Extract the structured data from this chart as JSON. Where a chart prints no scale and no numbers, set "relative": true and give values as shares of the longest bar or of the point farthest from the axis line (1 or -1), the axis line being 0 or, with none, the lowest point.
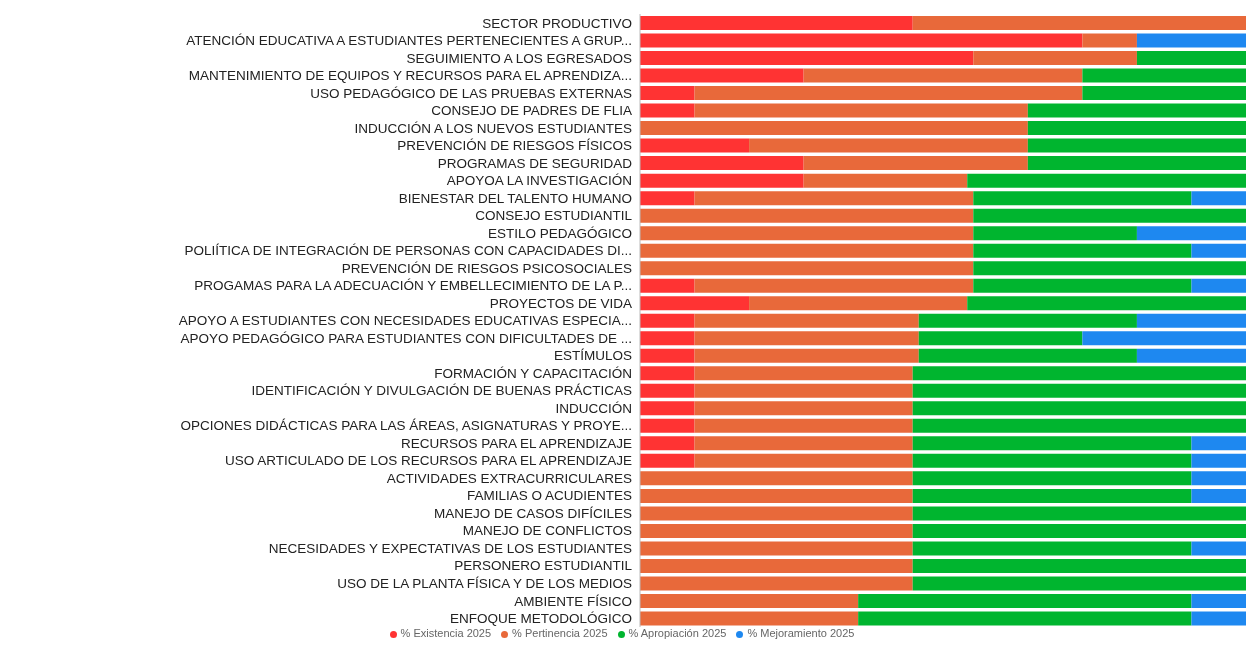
{
  "chart_data": {
    "type": "bar",
    "orientation": "horizontal",
    "stacked": true,
    "relative": true,
    "legend": "bottom",
    "grid": false,
    "marker": "circle",
    "categories": [
      "SECTOR PRODUCTIVO",
      "ATENCIÓN EDUCATIVA A ESTUDIANTES PERTENECIENTES A GRUP...",
      "SEGUIMIENTO A LOS EGRESADOS",
      "MANTENIMIENTO DE EQUIPOS Y RECURSOS PARA EL APRENDIZA...",
      "USO PEDAGÓGICO DE LAS PRUEBAS EXTERNAS",
      "CONSEJO DE PADRES DE FLIA",
      "INDUCCIÓN A LOS NUEVOS ESTUDIANTES",
      "PREVENCIÓN DE RIESGOS FÍSICOS",
      "PROGRAMAS DE SEGURIDAD",
      "APOYOA LA INVESTIGACIÓN",
      "BIENESTAR DEL TALENTO HUMANO",
      "CONSEJO ESTUDIANTIL",
      "ESTILO PEDAGÓGICO",
      "POLIÍTICA DE INTEGRACIÓN DE PERSONAS CON CAPACIDADES DI...",
      "PREVENCIÓN DE RIESGOS PSICOSOCIALES",
      "PROGAMAS PARA LA ADECUACIÓN Y EMBELLECIMIENTO DE LA P...",
      "PROYECTOS DE VIDA",
      "APOYO A ESTUDIANTES CON NECESIDADES EDUCATIVAS ESPECIA...",
      "APOYO PEDAGÓGICO PARA ESTUDIANTES CON DIFICULTADES DE ...",
      "ESTÍMULOS",
      "FORMACIÓN Y CAPACITACIÓN",
      "IDENTIFICACIÓN Y DIVULGACIÓN DE BUENAS PRÁCTICAS",
      "INDUCCIÓN",
      "OPCIONES DIDÁCTICAS PARA LAS ÁREAS, ASIGNATURAS Y PROYE...",
      "RECURSOS PARA EL APRENDIZAJE",
      "USO ARTICULADO DE LOS RECURSOS PARA EL APRENDIZAJE",
      "ACTIVIDADES EXTRACURRICULARES",
      "FAMILIAS O ACUDIENTES",
      "MANEJO DE CASOS DIFÍCILES",
      "MANEJO DE CONFLICTOS",
      "NECESIDADES Y EXPECTATIVAS DE LOS ESTUDIANTES",
      "PERSONERO ESTUDIANTIL",
      "USO DE LA PLANTA FÍSICA Y DE LOS MEDIOS",
      "AMBIENTE FÍSICO",
      "ENFOQUE METODOLÓGICO"
    ],
    "series": [
      {
        "name": "% Existencia 2025",
        "color": "#ff3333",
        "values": [
          0.45,
          0.73,
          0.55,
          0.27,
          0.09,
          0.09,
          null,
          0.18,
          0.27,
          0.27,
          0.09,
          null,
          null,
          null,
          null,
          0.09,
          0.18,
          0.09,
          0.09,
          0.09,
          0.09,
          0.09,
          0.09,
          0.09,
          0.09,
          0.09,
          null,
          null,
          null,
          null,
          null,
          null,
          null,
          null,
          null
        ]
      },
      {
        "name": "% Pertinencia 2025",
        "color": "#e8693a",
        "values": [
          0.55,
          0.09,
          0.27,
          0.46,
          0.64,
          0.55,
          0.64,
          0.46,
          0.37,
          0.27,
          0.46,
          0.55,
          0.55,
          0.55,
          0.55,
          0.46,
          0.36,
          0.37,
          0.37,
          0.37,
          0.36,
          0.36,
          0.36,
          0.36,
          0.36,
          0.36,
          0.45,
          0.45,
          0.45,
          0.45,
          0.45,
          0.45,
          0.45,
          0.36,
          0.36
        ]
      },
      {
        "name": "% Apropiación 2025",
        "color": "#00b52f",
        "values": [
          null,
          null,
          0.18,
          0.27,
          0.27,
          0.36,
          0.36,
          0.36,
          0.36,
          0.46,
          0.36,
          0.45,
          0.27,
          0.36,
          0.45,
          0.36,
          0.46,
          0.36,
          0.27,
          0.36,
          0.55,
          0.55,
          0.55,
          0.55,
          0.46,
          0.46,
          0.46,
          0.46,
          0.55,
          0.55,
          0.46,
          0.55,
          0.55,
          0.55,
          0.55
        ]
      },
      {
        "name": "% Mejoramiento 2025",
        "color": "#1e88f0",
        "values": [
          null,
          0.18,
          null,
          null,
          null,
          null,
          null,
          null,
          null,
          null,
          0.09,
          null,
          0.18,
          0.09,
          null,
          0.09,
          null,
          0.18,
          0.27,
          0.18,
          null,
          null,
          null,
          null,
          0.09,
          0.09,
          0.09,
          0.09,
          null,
          null,
          0.09,
          null,
          null,
          0.09,
          0.09
        ]
      }
    ]
  }
}
